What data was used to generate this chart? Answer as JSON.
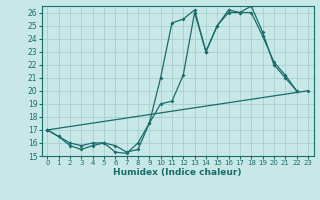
{
  "xlabel": "Humidex (Indice chaleur)",
  "bg_color": "#c8e8e8",
  "grid_color": "#a8cece",
  "line_color": "#1a6b6b",
  "xlim": [
    -0.5,
    23.5
  ],
  "ylim": [
    15,
    26.5
  ],
  "yticks": [
    15,
    16,
    17,
    18,
    19,
    20,
    21,
    22,
    23,
    24,
    25,
    26
  ],
  "xticks": [
    0,
    1,
    2,
    3,
    4,
    5,
    6,
    7,
    8,
    9,
    10,
    11,
    12,
    13,
    14,
    15,
    16,
    17,
    18,
    19,
    20,
    21,
    22,
    23
  ],
  "line1_x": [
    0,
    1,
    2,
    3,
    4,
    5,
    6,
    7,
    8,
    9,
    10,
    11,
    12,
    13,
    14,
    15,
    16,
    17,
    18,
    19,
    20,
    21,
    22
  ],
  "line1_y": [
    17.0,
    16.5,
    16.0,
    15.8,
    16.0,
    16.0,
    15.3,
    15.2,
    16.0,
    17.5,
    21.0,
    25.2,
    25.5,
    26.2,
    23.0,
    25.0,
    26.0,
    26.0,
    26.5,
    24.5,
    22.0,
    21.0,
    20.0
  ],
  "line2_x": [
    0,
    1,
    2,
    3,
    4,
    5,
    6,
    7,
    8,
    9,
    10,
    11,
    12,
    13,
    14,
    15,
    16,
    17,
    18,
    19,
    20,
    21,
    22
  ],
  "line2_y": [
    17.0,
    16.5,
    15.8,
    15.5,
    15.8,
    16.0,
    15.8,
    15.3,
    15.5,
    17.5,
    19.0,
    19.2,
    21.2,
    26.0,
    23.0,
    25.0,
    26.2,
    26.0,
    26.0,
    24.2,
    22.2,
    21.2,
    20.0
  ],
  "line3_x": [
    0,
    23
  ],
  "line3_y": [
    17.0,
    20.0
  ]
}
